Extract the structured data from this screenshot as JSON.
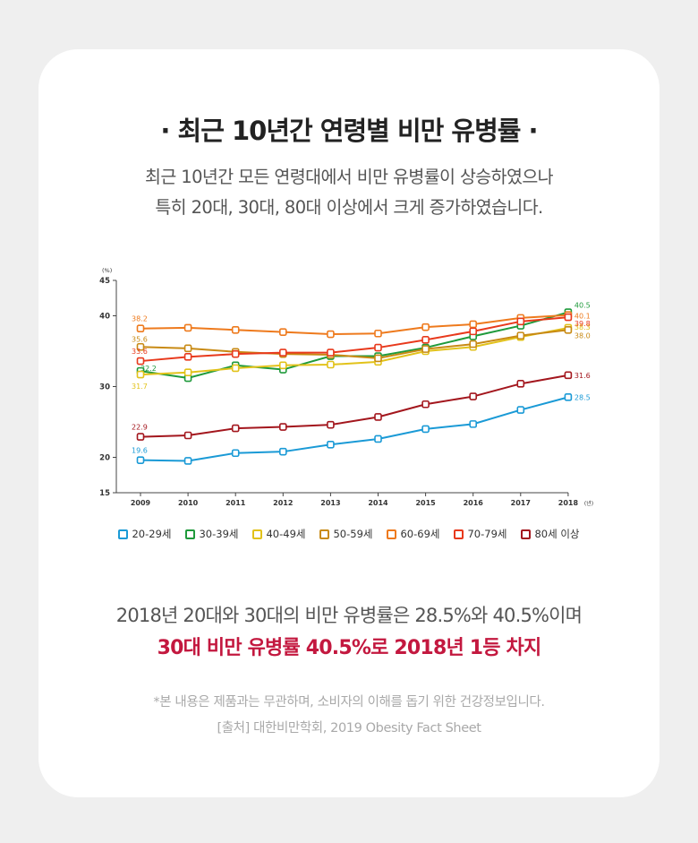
{
  "title": "· 최근 10년간 연령별 비만 유병률 ·",
  "subtitle": {
    "line1": "최근 10년간 모든 연령대에서 비만 유병률이 상승하였으나",
    "line2": "특히 20대, 30대, 80대 이상에서 크게 증가하였습니다."
  },
  "chart_data": {
    "type": "line",
    "title": "",
    "xlabel": "(년)",
    "ylabel": "(%)",
    "x": [
      2009,
      2010,
      2011,
      2012,
      2013,
      2014,
      2015,
      2016,
      2017,
      2018
    ],
    "ylim": [
      15,
      45
    ],
    "yticks": [
      15,
      20,
      30,
      40,
      45
    ],
    "series": [
      {
        "name": "20-29세",
        "color": "#1a9ad6",
        "values": [
          19.6,
          19.5,
          20.6,
          20.8,
          21.8,
          22.6,
          24.0,
          24.7,
          26.7,
          28.5
        ],
        "start_label": "19.6",
        "end_label": "28.5"
      },
      {
        "name": "30-39세",
        "color": "#1f9a3b",
        "values": [
          32.2,
          31.2,
          33.0,
          32.4,
          34.3,
          34.3,
          35.5,
          37.1,
          38.6,
          40.5
        ],
        "start_label": "32.2",
        "end_label": "40.5"
      },
      {
        "name": "40-49세",
        "color": "#e2c21a",
        "values": [
          31.7,
          32.0,
          32.6,
          33.0,
          33.1,
          33.5,
          35.0,
          35.6,
          37.0,
          38.3
        ],
        "start_label": "31.7",
        "end_label": "38.3"
      },
      {
        "name": "50-59세",
        "color": "#c88a14",
        "values": [
          35.6,
          35.4,
          34.9,
          34.6,
          34.5,
          34.0,
          35.3,
          36.0,
          37.2,
          38.0
        ],
        "start_label": "35.6",
        "end_label": "38.0"
      },
      {
        "name": "60-69세",
        "color": "#ee7a1d",
        "values": [
          38.2,
          38.3,
          38.0,
          37.7,
          37.4,
          37.5,
          38.4,
          38.8,
          39.7,
          40.1
        ],
        "start_label": "38.2",
        "end_label": "40.1"
      },
      {
        "name": "70-79세",
        "color": "#e8391c",
        "values": [
          33.6,
          34.2,
          34.6,
          34.8,
          34.8,
          35.5,
          36.6,
          37.8,
          39.2,
          39.8
        ],
        "start_label": "33.6",
        "end_label": "39.8"
      },
      {
        "name": "80세 이상",
        "color": "#a3161d",
        "values": [
          22.9,
          23.1,
          24.1,
          24.3,
          24.6,
          25.7,
          27.5,
          28.6,
          30.4,
          31.6
        ],
        "start_label": "22.9",
        "end_label": "31.6"
      }
    ]
  },
  "summary": "2018년 20대와 30대의 비만 유병률은 28.5%와 40.5%이며",
  "highlight": "30대 비만 유병률 40.5%로 2018년 1등 차지",
  "note": "*본 내용은 제품과는 무관하며, 소비자의 이해를 돕기 위한 건강정보입니다.",
  "source": "[출처] 대한비만학회, 2019 Obesity Fact Sheet",
  "colors": {
    "accent": "#c3183f",
    "background": "#efefef",
    "card": "#ffffff"
  }
}
